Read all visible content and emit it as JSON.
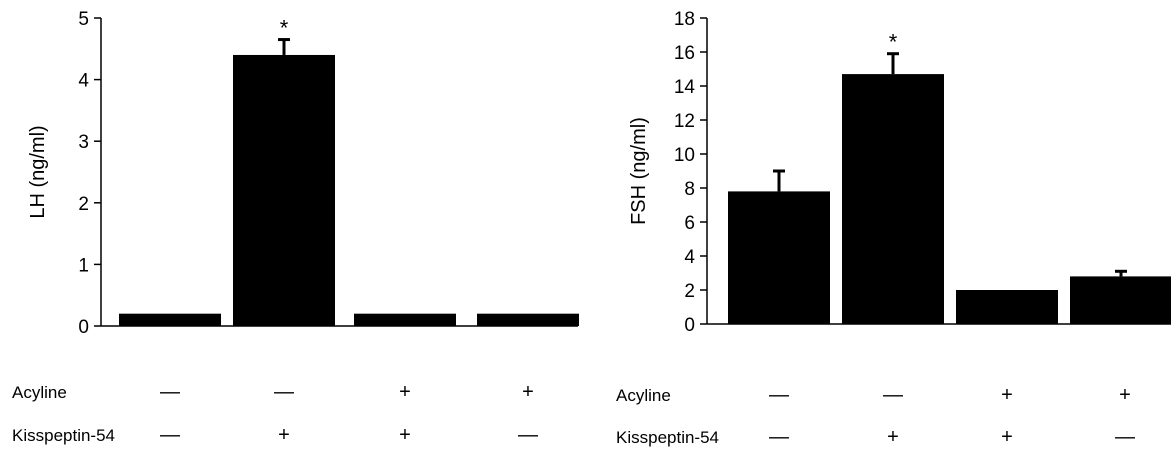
{
  "chart_data": [
    {
      "type": "bar",
      "ylabel": "LH (ng/ml)",
      "ylim": [
        0,
        5
      ],
      "yticks": [
        0,
        1,
        2,
        3,
        4,
        5
      ],
      "values": [
        0.2,
        4.4,
        0.2,
        0.2
      ],
      "errors": [
        0,
        0.25,
        0,
        0
      ],
      "significance": [
        "",
        "*",
        "",
        ""
      ],
      "bar_color": "#000000",
      "grid": false,
      "conditions": [
        {
          "label": "Acyline",
          "values": [
            "—",
            "—",
            "+",
            "+"
          ]
        },
        {
          "label": "Kisspeptin-54",
          "values": [
            "—",
            "+",
            "+",
            "—"
          ]
        }
      ]
    },
    {
      "type": "bar",
      "ylabel": "FSH (ng/ml)",
      "ylim": [
        0,
        18
      ],
      "yticks": [
        0,
        2,
        4,
        6,
        8,
        10,
        12,
        14,
        16,
        18
      ],
      "values": [
        7.8,
        14.7,
        2.0,
        2.8
      ],
      "errors": [
        1.2,
        1.2,
        0,
        0.3
      ],
      "significance": [
        "",
        "*",
        "",
        ""
      ],
      "bar_color": "#000000",
      "grid": false,
      "conditions": [
        {
          "label": "Acyline",
          "values": [
            "—",
            "—",
            "+",
            "+"
          ]
        },
        {
          "label": "Kisspeptin-54",
          "values": [
            "—",
            "+",
            "+",
            "—"
          ]
        }
      ]
    }
  ]
}
